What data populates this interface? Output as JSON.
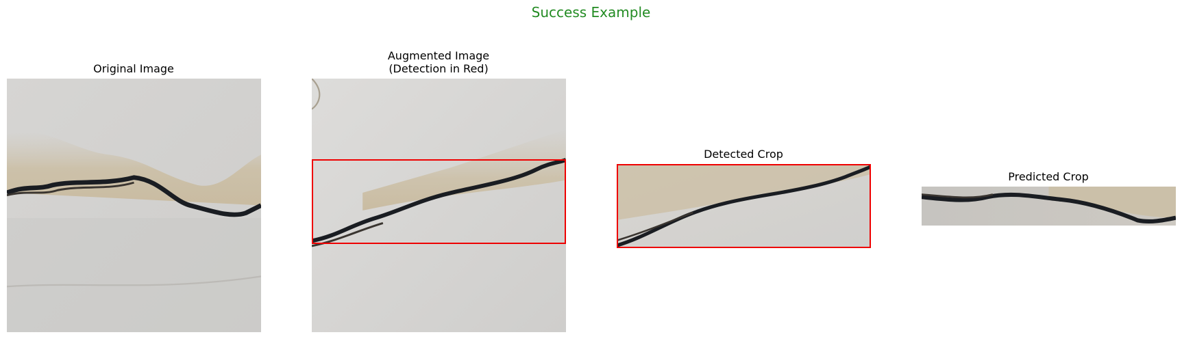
{
  "figure": {
    "suptitle": "Success Example",
    "suptitle_color": "#228b22"
  },
  "panels": [
    {
      "title": "Original Image"
    },
    {
      "title": "Augmented Image\n(Detection in Red)"
    },
    {
      "title": "Detected Crop"
    },
    {
      "title": "Predicted Crop"
    }
  ],
  "colors": {
    "detection_box": "#ee0000",
    "concrete_light": "#d9d8d6",
    "concrete_mid": "#c9c8c6",
    "stain": "#cbbfa6",
    "crack": "#1a1d22"
  }
}
